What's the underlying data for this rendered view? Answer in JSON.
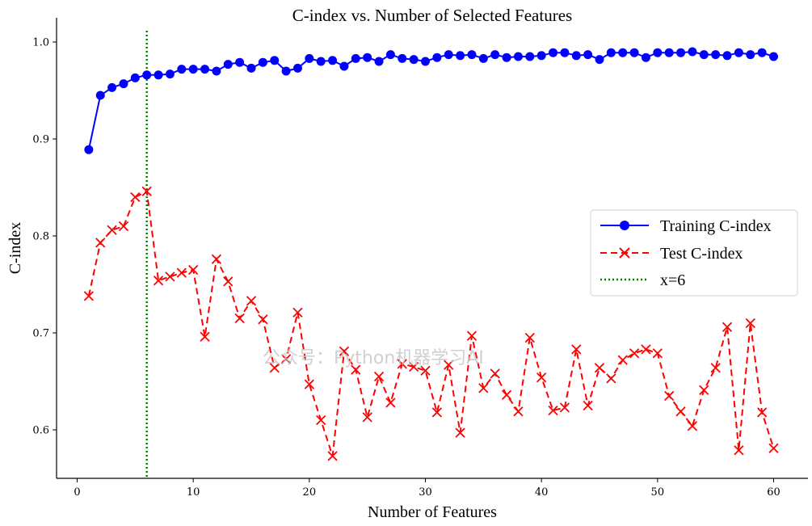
{
  "chart_data": {
    "type": "line",
    "title": "C-index vs. Number of Selected Features",
    "xlabel": "Number of Features",
    "ylabel": "C-index",
    "xlim": [
      -3,
      63
    ],
    "ylim": [
      0.55,
      1.02
    ],
    "xticks": [
      0,
      10,
      20,
      30,
      40,
      50,
      60
    ],
    "yticks": [
      0.6,
      0.7,
      0.8,
      0.9,
      1.0
    ],
    "ytick_labels": [
      "0.6",
      "0.7",
      "0.8",
      "0.9",
      "1.0"
    ],
    "grid": false,
    "legend_position": "center-right",
    "x": [
      1,
      2,
      3,
      4,
      5,
      6,
      7,
      8,
      9,
      10,
      11,
      12,
      13,
      14,
      15,
      16,
      17,
      18,
      19,
      20,
      21,
      22,
      23,
      24,
      25,
      26,
      27,
      28,
      29,
      30,
      31,
      32,
      33,
      34,
      35,
      36,
      37,
      38,
      39,
      40,
      41,
      42,
      43,
      44,
      45,
      46,
      47,
      48,
      49,
      50,
      51,
      52,
      53,
      54,
      55,
      56,
      57,
      58,
      59,
      60
    ],
    "series": [
      {
        "name": "Training C-index",
        "color": "#0000ff",
        "style": "solid",
        "marker": "circle",
        "values": [
          0.889,
          0.945,
          0.953,
          0.957,
          0.963,
          0.966,
          0.966,
          0.967,
          0.972,
          0.972,
          0.972,
          0.97,
          0.977,
          0.979,
          0.973,
          0.979,
          0.981,
          0.97,
          0.973,
          0.983,
          0.98,
          0.981,
          0.975,
          0.983,
          0.984,
          0.98,
          0.987,
          0.983,
          0.982,
          0.98,
          0.984,
          0.987,
          0.986,
          0.987,
          0.983,
          0.987,
          0.984,
          0.985,
          0.985,
          0.986,
          0.989,
          0.989,
          0.986,
          0.987,
          0.982,
          0.989,
          0.989,
          0.989,
          0.984,
          0.989,
          0.989,
          0.989,
          0.99,
          0.987,
          0.987,
          0.986,
          0.989,
          0.987,
          0.989,
          0.985
        ]
      },
      {
        "name": "Test C-index",
        "color": "#ff0000",
        "style": "dashed",
        "marker": "x",
        "values": [
          0.738,
          0.793,
          0.806,
          0.81,
          0.84,
          0.846,
          0.754,
          0.758,
          0.762,
          0.765,
          0.696,
          0.776,
          0.753,
          0.715,
          0.733,
          0.714,
          0.664,
          0.673,
          0.721,
          0.647,
          0.61,
          0.573,
          0.681,
          0.662,
          0.613,
          0.655,
          0.628,
          0.668,
          0.665,
          0.661,
          0.618,
          0.667,
          0.597,
          0.697,
          0.643,
          0.658,
          0.636,
          0.619,
          0.695,
          0.654,
          0.62,
          0.623,
          0.683,
          0.625,
          0.664,
          0.653,
          0.672,
          0.679,
          0.683,
          0.679,
          0.635,
          0.619,
          0.604,
          0.641,
          0.664,
          0.706,
          0.579,
          0.71,
          0.618,
          0.581
        ]
      }
    ],
    "vline": {
      "name": "x=6",
      "x": 6,
      "color": "#008000",
      "style": "dotted"
    },
    "watermark": "公众号：Python机器学习AI"
  }
}
